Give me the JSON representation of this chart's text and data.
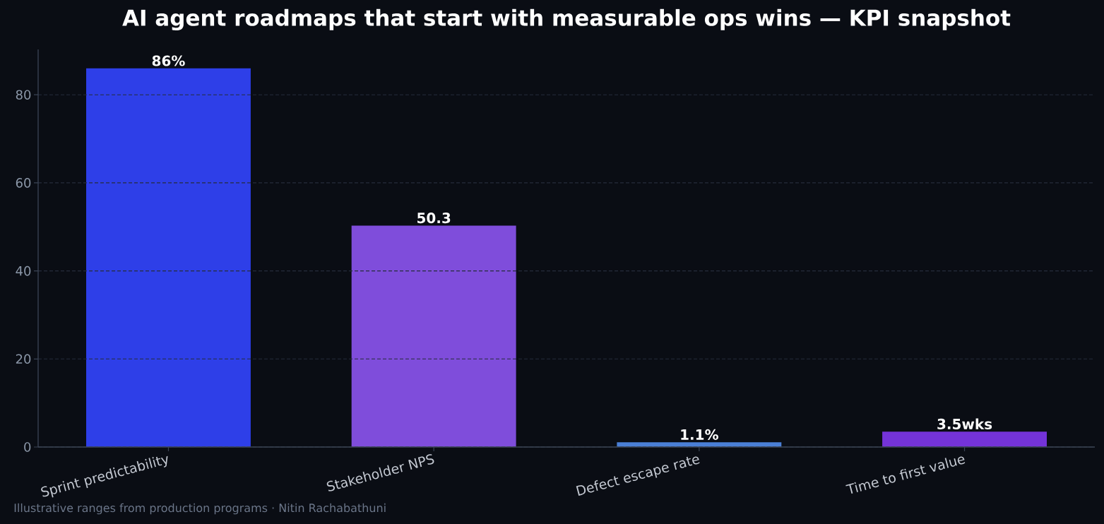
{
  "chart_data": {
    "type": "bar",
    "title": "AI agent roadmaps that start with measurable ops wins — KPI snapshot",
    "categories": [
      "Sprint predictability",
      "Stakeholder NPS",
      "Defect escape rate",
      "Time to first value"
    ],
    "values": [
      86,
      50.3,
      1.1,
      3.5
    ],
    "colors": [
      "#2e3fe8",
      "#7f4ddb",
      "#4a7fd6",
      "#7433d8"
    ],
    "value_labels": [
      "86%",
      "50.3",
      "1.1%",
      "3.5wks"
    ],
    "ylim": [
      0,
      90.3
    ],
    "yticks": [
      0,
      20,
      40,
      60,
      80
    ],
    "grid": "y",
    "annotations": [
      "Illustrative ranges from production programs · Nitin Rachabathuni"
    ]
  }
}
